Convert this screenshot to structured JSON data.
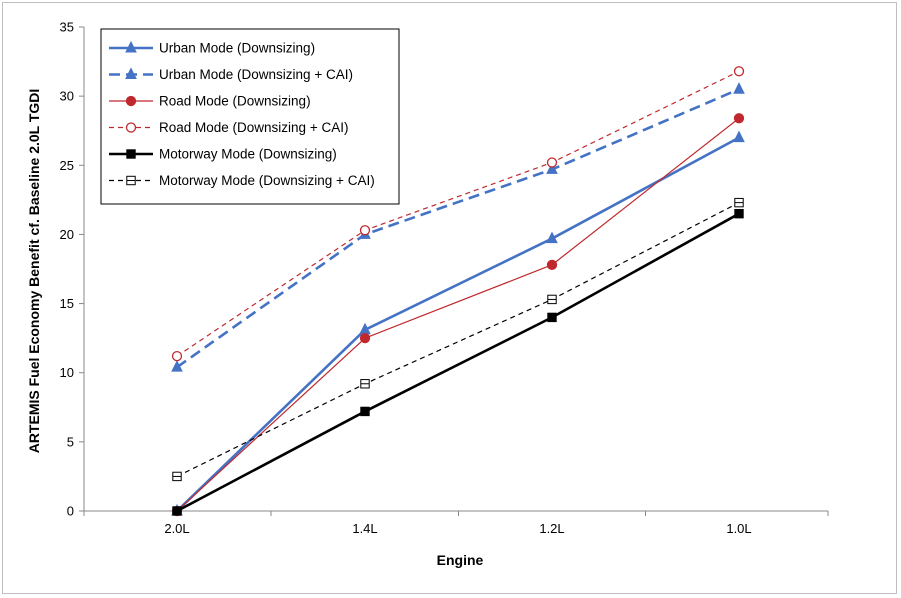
{
  "chart_data": {
    "type": "line",
    "categories": [
      "2.0L",
      "1.4L",
      "1.2L",
      "1.0L"
    ],
    "xlabel": "Engine",
    "ylabel": "ARTEMIS Fuel Economy Benefit cf. Baseline 2.0L TGDI",
    "ylim": [
      0,
      35
    ],
    "yticks": [
      0,
      5,
      10,
      15,
      20,
      25,
      30,
      35
    ],
    "grid": false,
    "legend_position": "top-left",
    "series": [
      {
        "name": "Urban Mode (Downsizing)",
        "values": [
          0,
          13.1,
          19.7,
          27.0
        ],
        "color": "#4472C4",
        "dash": "solid",
        "marker": "triangle",
        "fill": "filled",
        "width": "thick"
      },
      {
        "name": "Urban Mode (Downsizing + CAI)",
        "values": [
          10.4,
          20.0,
          24.7,
          30.5
        ],
        "color": "#4472C4",
        "dash": "long-dash",
        "marker": "triangle",
        "fill": "filled",
        "width": "thick"
      },
      {
        "name": "Road Mode (Downsizing)",
        "values": [
          0,
          12.5,
          17.8,
          28.4
        ],
        "color": "#C0282D",
        "dash": "solid",
        "marker": "circle",
        "fill": "filled",
        "width": "thin"
      },
      {
        "name": "Road Mode (Downsizing + CAI)",
        "values": [
          11.2,
          20.3,
          25.2,
          31.8
        ],
        "color": "#C0282D",
        "dash": "short-dash",
        "marker": "circle",
        "fill": "open",
        "width": "thin"
      },
      {
        "name": "Motorway Mode (Downsizing)",
        "values": [
          0,
          7.2,
          14.0,
          21.5
        ],
        "color": "#000000",
        "dash": "solid",
        "marker": "square",
        "fill": "filled",
        "width": "thick"
      },
      {
        "name": "Motorway Mode (Downsizing + CAI)",
        "values": [
          2.5,
          9.2,
          15.3,
          22.3
        ],
        "color": "#000000",
        "dash": "short-dash",
        "marker": "square",
        "fill": "open-half",
        "width": "thin"
      }
    ]
  }
}
